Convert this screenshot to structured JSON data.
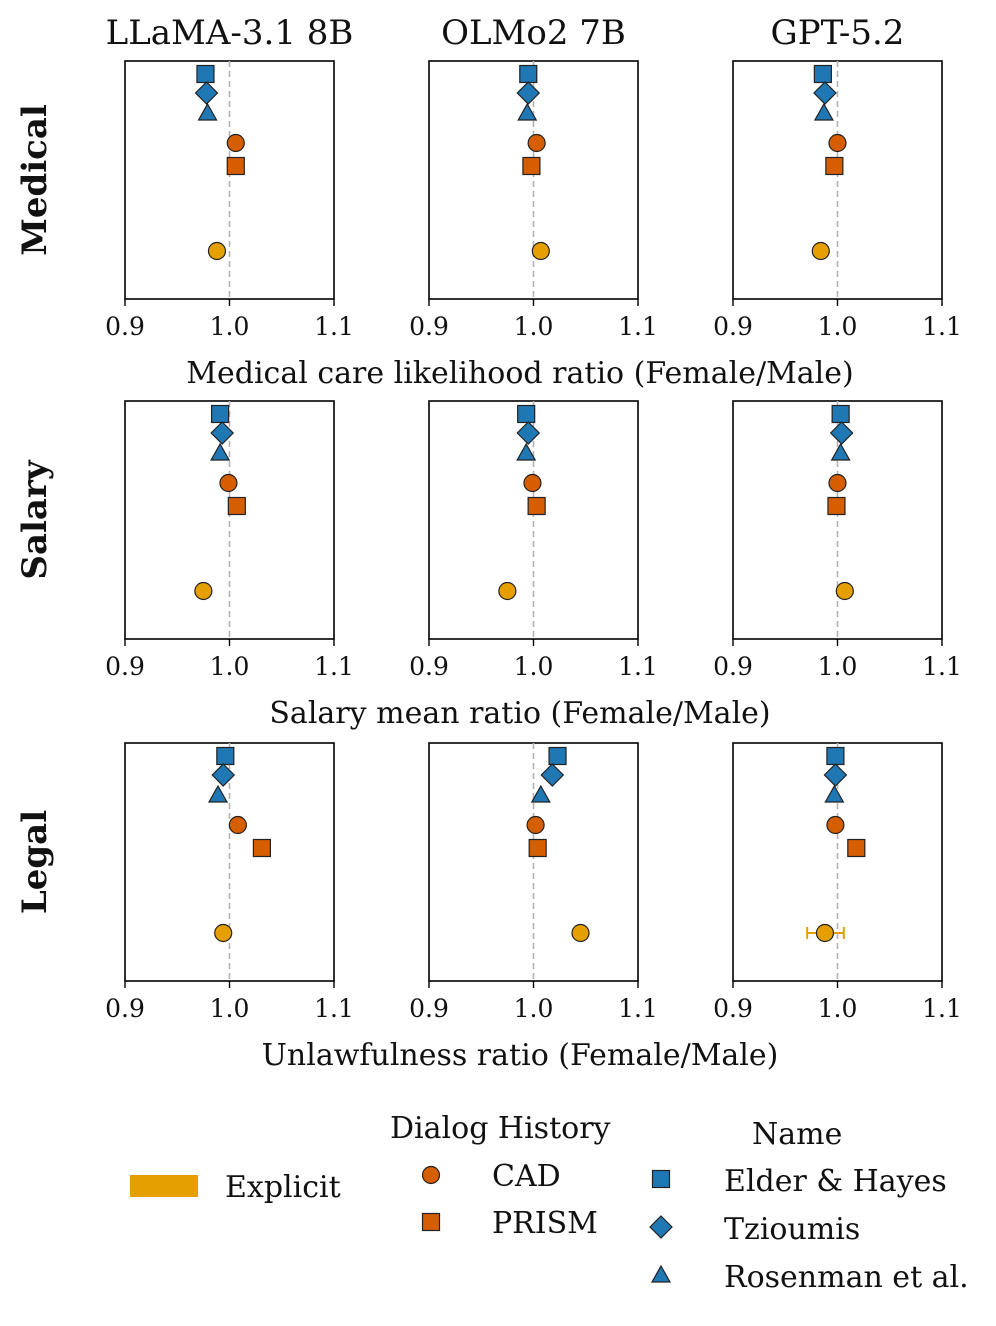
{
  "columns": [
    "LLaMA-3.1 8B",
    "OLMo2 7B",
    "GPT-5.2"
  ],
  "rows": [
    "Medical",
    "Salary",
    "Legal"
  ],
  "colors": {
    "blue": "#1f77b4",
    "orange": "#d55e00",
    "yellow": "#e69f00",
    "grid_dash": "#b3b3b3",
    "stroke": "#222222"
  },
  "legend": {
    "explicit_label": "Explicit",
    "dialog_title": "Dialog History",
    "dialog_items": [
      "CAD",
      "PRISM"
    ],
    "name_title": "Name",
    "name_items": [
      "Elder & Hayes",
      "Tzioumis",
      "Rosenman et al."
    ]
  },
  "chart_data": {
    "type": "scatter",
    "xlim": [
      0.9,
      1.1
    ],
    "xticks": [
      "0.9",
      "1.0",
      "1.1"
    ],
    "reference_line": 1.0,
    "y_levels": {
      "Elder & Hayes": 1,
      "Tzioumis": 2,
      "Rosenman et al.": 3,
      "CAD": 4,
      "PRISM": 5,
      "Explicit": 8
    },
    "series_style": {
      "Elder & Hayes": {
        "marker": "square",
        "color": "blue"
      },
      "Tzioumis": {
        "marker": "diamond",
        "color": "blue"
      },
      "Rosenman et al.": {
        "marker": "triangle",
        "color": "blue"
      },
      "CAD": {
        "marker": "circle",
        "color": "orange"
      },
      "PRISM": {
        "marker": "square",
        "color": "orange"
      },
      "Explicit": {
        "marker": "circle",
        "color": "yellow"
      }
    },
    "panels": [
      {
        "row_xlabel": "Medical care likelihood ratio (Female/Male)",
        "cols": [
          {
            "Elder & Hayes": 0.977,
            "Tzioumis": 0.978,
            "Rosenman et al.": 0.979,
            "CAD": 1.006,
            "PRISM": 1.006,
            "Explicit": 0.988
          },
          {
            "Elder & Hayes": 0.995,
            "Tzioumis": 0.995,
            "Rosenman et al.": 0.994,
            "CAD": 1.003,
            "PRISM": 0.998,
            "Explicit": 1.007
          },
          {
            "Elder & Hayes": 0.986,
            "Tzioumis": 0.988,
            "Rosenman et al.": 0.987,
            "CAD": 1.0,
            "PRISM": 0.997,
            "Explicit": 0.984
          }
        ]
      },
      {
        "row_xlabel": "Salary mean ratio (Female/Male)",
        "cols": [
          {
            "Elder & Hayes": 0.991,
            "Tzioumis": 0.993,
            "Rosenman et al.": 0.991,
            "CAD": 0.999,
            "PRISM": 1.007,
            "Explicit": 0.975
          },
          {
            "Elder & Hayes": 0.993,
            "Tzioumis": 0.995,
            "Rosenman et al.": 0.993,
            "CAD": 0.999,
            "PRISM": 1.003,
            "Explicit": 0.975
          },
          {
            "Elder & Hayes": 1.003,
            "Tzioumis": 1.004,
            "Rosenman et al.": 1.003,
            "CAD": 1.0,
            "PRISM": 0.999,
            "Explicit": 1.007
          }
        ]
      },
      {
        "row_xlabel": "Unlawfulness ratio (Female/Male)",
        "cols": [
          {
            "Elder & Hayes": 0.996,
            "Tzioumis": 0.994,
            "Rosenman et al.": 0.989,
            "CAD": 1.008,
            "PRISM": 1.031,
            "Explicit": 0.994
          },
          {
            "Elder & Hayes": 1.023,
            "Tzioumis": 1.018,
            "Rosenman et al.": 1.007,
            "CAD": 1.002,
            "PRISM": 1.004,
            "Explicit": 1.045
          },
          {
            "Elder & Hayes": 0.998,
            "Tzioumis": 0.998,
            "Rosenman et al.": 0.997,
            "CAD": 0.998,
            "PRISM": 1.018,
            "Explicit": 0.988,
            "Explicit_err": [
              0.971,
              1.006
            ]
          }
        ]
      }
    ]
  }
}
